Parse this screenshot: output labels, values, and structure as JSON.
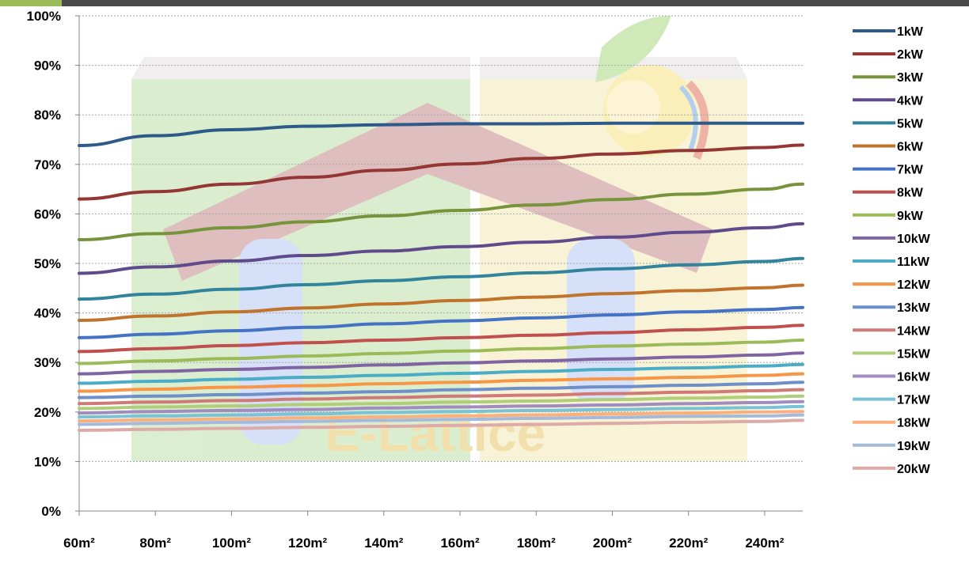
{
  "chart_data": {
    "type": "line",
    "title": "",
    "xlabel": "",
    "ylabel": "",
    "x": [
      "60m²",
      "80m²",
      "100m²",
      "120m²",
      "140m²",
      "160m²",
      "180m²",
      "200m²",
      "220m²",
      "240m²"
    ],
    "xlim": [
      "60m²",
      "250m²"
    ],
    "y_ticks": [
      "0%",
      "10%",
      "20%",
      "30%",
      "40%",
      "50%",
      "60%",
      "70%",
      "80%",
      "90%",
      "100%"
    ],
    "ylim": [
      0,
      100
    ],
    "grid": true,
    "legend_position": "right",
    "series": [
      {
        "name": "1kW",
        "color": "#2e5a8a",
        "values": [
          73.8,
          75.8,
          77.0,
          77.7,
          78.0,
          78.2,
          78.2,
          78.3,
          78.3,
          78.3,
          78.3
        ]
      },
      {
        "name": "2kW",
        "color": "#943634",
        "values": [
          63.0,
          64.5,
          66.0,
          67.4,
          68.8,
          70.1,
          71.2,
          72.1,
          72.8,
          73.4,
          73.9
        ]
      },
      {
        "name": "3kW",
        "color": "#77933c",
        "values": [
          54.8,
          56.0,
          57.2,
          58.4,
          59.6,
          60.7,
          61.8,
          62.9,
          64.0,
          65.0,
          66.0
        ]
      },
      {
        "name": "4kW",
        "color": "#5f4b8b",
        "values": [
          48.0,
          49.3,
          50.5,
          51.6,
          52.5,
          53.4,
          54.3,
          55.3,
          56.3,
          57.2,
          58.0
        ]
      },
      {
        "name": "5kW",
        "color": "#31849b",
        "values": [
          42.8,
          43.8,
          44.8,
          45.7,
          46.5,
          47.3,
          48.1,
          48.9,
          49.7,
          50.4,
          51.0
        ]
      },
      {
        "name": "6kW",
        "color": "#c0732c",
        "values": [
          38.5,
          39.4,
          40.2,
          41.0,
          41.8,
          42.5,
          43.2,
          43.9,
          44.5,
          45.1,
          45.6
        ]
      },
      {
        "name": "7kW",
        "color": "#4472c4",
        "values": [
          35.0,
          35.7,
          36.4,
          37.1,
          37.8,
          38.4,
          39.0,
          39.6,
          40.2,
          40.7,
          41.1
        ]
      },
      {
        "name": "8kW",
        "color": "#c0504d",
        "values": [
          32.2,
          32.8,
          33.4,
          34.0,
          34.5,
          35.0,
          35.5,
          36.0,
          36.6,
          37.1,
          37.5
        ]
      },
      {
        "name": "9kW",
        "color": "#9bbb59",
        "values": [
          29.8,
          30.3,
          30.8,
          31.3,
          31.8,
          32.3,
          32.8,
          33.3,
          33.7,
          34.1,
          34.5
        ]
      },
      {
        "name": "10kW",
        "color": "#8064a2",
        "values": [
          27.7,
          28.2,
          28.6,
          29.0,
          29.5,
          29.9,
          30.3,
          30.7,
          31.1,
          31.5,
          31.9
        ]
      },
      {
        "name": "11kW",
        "color": "#4bacc6",
        "values": [
          25.8,
          26.2,
          26.6,
          27.0,
          27.4,
          27.8,
          28.2,
          28.6,
          28.9,
          29.3,
          29.6
        ]
      },
      {
        "name": "12kW",
        "color": "#f79646",
        "values": [
          24.2,
          24.6,
          25.0,
          25.3,
          25.7,
          26.0,
          26.4,
          26.7,
          27.0,
          27.4,
          27.7
        ]
      },
      {
        "name": "13kW",
        "color": "#6f8fc9",
        "values": [
          22.9,
          23.2,
          23.5,
          23.8,
          24.1,
          24.5,
          24.8,
          25.1,
          25.4,
          25.7,
          26.0
        ]
      },
      {
        "name": "14kW",
        "color": "#d07a78",
        "values": [
          21.7,
          22.0,
          22.3,
          22.6,
          22.9,
          23.2,
          23.4,
          23.7,
          24.0,
          24.3,
          24.5
        ]
      },
      {
        "name": "15kW",
        "color": "#b0cd7a",
        "values": [
          20.7,
          21.0,
          21.2,
          21.5,
          21.7,
          22.0,
          22.2,
          22.5,
          22.8,
          23.0,
          23.2
        ]
      },
      {
        "name": "16kW",
        "color": "#a08cbf",
        "values": [
          19.8,
          20.1,
          20.3,
          20.5,
          20.8,
          21.0,
          21.2,
          21.4,
          21.7,
          21.9,
          22.1
        ]
      },
      {
        "name": "17kW",
        "color": "#7ac3d6",
        "values": [
          19.0,
          19.2,
          19.4,
          19.6,
          19.9,
          20.1,
          20.3,
          20.5,
          20.7,
          20.9,
          21.1
        ]
      },
      {
        "name": "18kW",
        "color": "#f9b07d",
        "values": [
          18.2,
          18.4,
          18.6,
          18.8,
          19.0,
          19.2,
          19.4,
          19.6,
          19.8,
          20.0,
          20.1
        ]
      },
      {
        "name": "19kW",
        "color": "#a5b9da",
        "values": [
          17.5,
          17.7,
          17.9,
          18.1,
          18.3,
          18.5,
          18.7,
          18.9,
          19.1,
          19.2,
          19.4
        ]
      },
      {
        "name": "20kW",
        "color": "#deaaa8",
        "values": [
          16.3,
          16.5,
          16.7,
          16.9,
          17.1,
          17.3,
          17.5,
          17.7,
          17.9,
          18.1,
          18.3
        ]
      }
    ],
    "x_values": [
      60,
      80,
      100,
      120,
      140,
      160,
      180,
      200,
      220,
      240,
      250
    ]
  },
  "watermark": {
    "text": "E-Lattice",
    "description_colors": {
      "left_panel": "#cfe8c0",
      "right_panel": "#f6edc4",
      "roof": "#c88b8b",
      "sun": "#f4e06a",
      "leaf": "#b9dd8a"
    }
  }
}
